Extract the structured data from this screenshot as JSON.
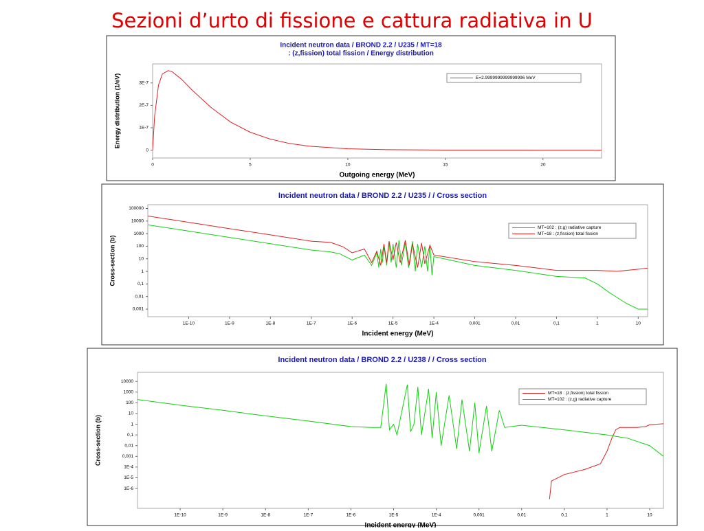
{
  "title": "Sezioni d’urto di fissione e cattura radiativa in U",
  "chart_data": [
    {
      "type": "line",
      "title": [
        "Incident neutron data / BROND 2.2 / U235 / MT=18",
        ": (z,fission) total fission / Energy distribution"
      ],
      "x_label": "Outgoing energy (MeV)",
      "y_label": "Energy distribution (1/eV)",
      "xscale": "linear",
      "yscale": "linear",
      "xlim": [
        0,
        23
      ],
      "ylim": [
        -3.5e-08,
        3.85e-07
      ],
      "xticks": [
        0,
        5,
        10,
        15,
        20
      ],
      "yticks": [
        0,
        {
          "value": 1e-07,
          "label": "1E-7"
        },
        {
          "value": 2e-07,
          "label": "2E-7"
        },
        {
          "value": 3e-07,
          "label": "3E-7"
        }
      ],
      "legend": "upper right",
      "series": [
        {
          "name": "E=2.9999999999999996 MeV",
          "color": "#e02020",
          "x": [
            0,
            0.1,
            0.3,
            0.5,
            0.8,
            1,
            1.5,
            2,
            3,
            4,
            5,
            6,
            7,
            8,
            10,
            12,
            15,
            20,
            23
          ],
          "values": [
            0,
            1.5e-07,
            2.9e-07,
            3.4e-07,
            3.55e-07,
            3.5e-07,
            3.15e-07,
            2.7e-07,
            1.9e-07,
            1.25e-07,
            8e-08,
            5e-08,
            3e-08,
            1.8e-08,
            6e-09,
            2e-09,
            4e-10,
            0,
            0
          ]
        }
      ]
    },
    {
      "type": "line",
      "title": [
        "Incident neutron data / BROND 2.2 / U235 / / Cross section"
      ],
      "x_label": "Incident energy (MeV)",
      "y_label": "Cross-section (b)",
      "xscale": "log",
      "yscale": "log",
      "xlim": [
        1e-11,
        17
      ],
      "ylim": [
        0.00025,
        200000
      ],
      "xticks": [
        {
          "value": 1e-10,
          "label": "1E-10"
        },
        {
          "value": 1e-09,
          "label": "1E-9"
        },
        {
          "value": 1e-08,
          "label": "1E-8"
        },
        {
          "value": 1e-07,
          "label": "1E-7"
        },
        {
          "value": 1e-06,
          "label": "1E-6"
        },
        {
          "value": 1e-05,
          "label": "1E-5"
        },
        {
          "value": 0.0001,
          "label": "1E-4"
        },
        {
          "value": 0.001,
          "label": "0,001"
        },
        {
          "value": 0.01,
          "label": "0,01"
        },
        {
          "value": 0.1,
          "label": "0,1"
        },
        1,
        10
      ],
      "yticks": [
        100000,
        10000,
        1000,
        100,
        10,
        1,
        {
          "value": 0.1,
          "label": "0,1"
        },
        {
          "value": 0.01,
          "label": "0,01"
        },
        {
          "value": 0.001,
          "label": "0,001"
        }
      ],
      "legend": "upper right",
      "series": [
        {
          "name": "MT=102 : (z,g) radiative capture",
          "color": "#10d010",
          "x": [
            1e-11,
            1e-10,
            1e-09,
            1e-08,
            1e-07,
            3e-07,
            5e-07,
            1e-06,
            2e-06,
            3e-06,
            4e-06,
            4.5e-06,
            5e-06,
            5.5e-06,
            6e-06,
            7e-06,
            8e-06,
            9e-06,
            1e-05,
            1.2e-05,
            1.4e-05,
            1.6e-05,
            2e-05,
            2.4e-05,
            3e-05,
            3.5e-05,
            4e-05,
            5e-05,
            6e-05,
            7e-05,
            8e-05,
            9e-05,
            0.0001,
            0.001,
            0.01,
            0.1,
            0.5,
            1,
            2,
            5,
            10,
            17
          ],
          "values": [
            5000,
            1600,
            500,
            160,
            50,
            35,
            25,
            8,
            20,
            3,
            30,
            2,
            60,
            5,
            100,
            3,
            200,
            5,
            150,
            2,
            300,
            3,
            200,
            2,
            250,
            1,
            150,
            2,
            100,
            1,
            120,
            0.5,
            15,
            3,
            1.2,
            0.4,
            0.3,
            0.1,
            0.02,
            0.003,
            0.001,
            0.001
          ]
        },
        {
          "name": "MT=18 : (z,fission) total fission",
          "color": "#e02020",
          "x": [
            1e-11,
            1e-10,
            1e-09,
            1e-08,
            1e-07,
            3e-07,
            6e-07,
            1e-06,
            2e-06,
            3e-06,
            4e-06,
            5e-06,
            6e-06,
            7e-06,
            8e-06,
            1e-05,
            1.2e-05,
            1.5e-05,
            2e-05,
            2.5e-05,
            3e-05,
            4e-05,
            5e-05,
            6e-05,
            8e-05,
            0.0001,
            0.001,
            0.01,
            0.1,
            1,
            3,
            10,
            17
          ],
          "values": [
            25000,
            8000,
            2500,
            800,
            250,
            200,
            90,
            30,
            60,
            5,
            40,
            3,
            150,
            5,
            250,
            8,
            200,
            5,
            300,
            3,
            150,
            2,
            180,
            4,
            120,
            20,
            6,
            3,
            1.2,
            1.2,
            1,
            1.5,
            1.8
          ]
        }
      ]
    },
    {
      "type": "line",
      "title": [
        "Incident neutron data / BROND 2.2 / U238 / / Cross section"
      ],
      "x_label": "Incident energy (MeV)",
      "y_label": "Cross-section (b)",
      "xscale": "log",
      "yscale": "log",
      "xlim": [
        1e-11,
        21
      ],
      "ylim": [
        1.4e-08,
        70000
      ],
      "xticks": [
        {
          "value": 1e-10,
          "label": "1E-10"
        },
        {
          "value": 1e-09,
          "label": "1E-9"
        },
        {
          "value": 1e-08,
          "label": "1E-8"
        },
        {
          "value": 1e-07,
          "label": "1E-7"
        },
        {
          "value": 1e-06,
          "label": "1E-6"
        },
        {
          "value": 1e-05,
          "label": "1E-5"
        },
        {
          "value": 0.0001,
          "label": "1E-4"
        },
        {
          "value": 0.001,
          "label": "0,001"
        },
        {
          "value": 0.01,
          "label": "0,01"
        },
        {
          "value": 0.1,
          "label": "0,1"
        },
        1,
        10
      ],
      "yticks": [
        10000,
        1000,
        100,
        10,
        1,
        {
          "value": 0.1,
          "label": "0,1"
        },
        {
          "value": 0.01,
          "label": "0,01"
        },
        {
          "value": 0.001,
          "label": "0,001"
        },
        {
          "value": 0.0001,
          "label": "1E-4"
        },
        {
          "value": 1e-05,
          "label": "1E-5"
        },
        {
          "value": 1e-06,
          "label": "1E-6"
        }
      ],
      "legend": "upper right",
      "series": [
        {
          "name": "MT=18 : (z,fission) total fission",
          "color": "#e02020",
          "x": [
            0.045,
            0.05,
            0.1,
            0.3,
            0.7,
            1,
            1.3,
            1.6,
            2,
            5,
            8,
            10,
            21
          ],
          "values": [
            1e-07,
            5e-06,
            2e-05,
            6e-05,
            0.0002,
            0.003,
            0.05,
            0.3,
            0.5,
            0.5,
            0.6,
            0.9,
            1.1
          ]
        },
        {
          "name": "MT=102 : (z,g) radiative capture",
          "color": "#10d010",
          "x": [
            1e-11,
            1e-10,
            1e-09,
            1e-08,
            1e-07,
            1e-06,
            3e-06,
            5e-06,
            6.7e-06,
            8e-06,
            1e-05,
            1.2e-05,
            2.1e-05,
            2.5e-05,
            3e-05,
            3.7e-05,
            4.5e-05,
            6.6e-05,
            8e-05,
            0.0001,
            0.00013,
            0.0002,
            0.0003,
            0.0004,
            0.0006,
            0.0008,
            0.001,
            0.0015,
            0.002,
            0.003,
            0.004,
            0.01,
            0.1,
            1,
            3,
            10,
            21
          ],
          "values": [
            200,
            60,
            20,
            6,
            2,
            0.6,
            0.5,
            0.5,
            6000,
            0.3,
            1,
            0.1,
            5000,
            0.2,
            1,
            3000,
            0.1,
            2000,
            0.05,
            1000,
            0.01,
            500,
            0.005,
            200,
            0.003,
            100,
            0.002,
            50,
            0.003,
            20,
            0.5,
            0.8,
            0.3,
            0.1,
            0.05,
            0.01,
            0.001
          ]
        }
      ]
    }
  ]
}
